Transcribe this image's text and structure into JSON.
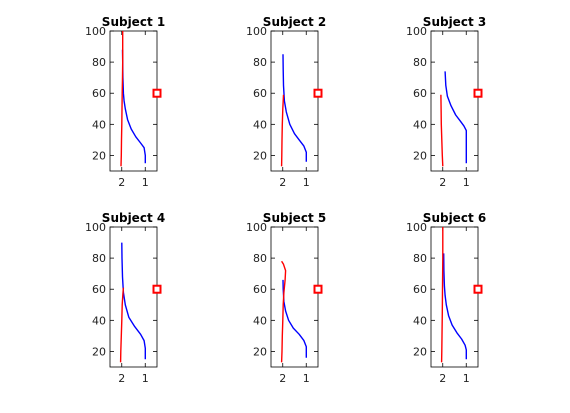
{
  "chart_data": [
    {
      "type": "line",
      "title": "Subject 1",
      "xlim": [
        2.5,
        0.5
      ],
      "ylim": [
        10,
        100
      ],
      "xticks": [
        2,
        1
      ],
      "yticks": [
        20,
        40,
        60,
        80,
        100
      ],
      "series": [
        {
          "color": "#0000ff",
          "x": [
            1,
            1,
            1.05,
            1.2,
            1.4,
            1.6,
            1.75,
            1.85,
            1.9,
            1.93,
            1.95,
            1.96,
            1.97
          ],
          "y": [
            15,
            20,
            25,
            28,
            32,
            37,
            43,
            50,
            55,
            60,
            70,
            80,
            88
          ]
        },
        {
          "color": "#ff0000",
          "x": [
            2.03,
            2.02,
            2.01,
            2.0,
            1.99,
            1.98,
            1.97,
            1.96,
            1.96
          ],
          "y": [
            13,
            20,
            30,
            40,
            50,
            60,
            70,
            80,
            100
          ]
        }
      ],
      "marker": {
        "color": "#ff0000",
        "x": 0.5,
        "y": 60
      }
    },
    {
      "type": "line",
      "title": "Subject 2",
      "xlim": [
        2.5,
        0.5
      ],
      "ylim": [
        10,
        100
      ],
      "xticks": [
        2,
        1
      ],
      "yticks": [
        20,
        40,
        60,
        80,
        100
      ],
      "series": [
        {
          "color": "#0000ff",
          "x": [
            1,
            1,
            1.1,
            1.3,
            1.5,
            1.7,
            1.85,
            1.93,
            1.97,
            1.98,
            1.99
          ],
          "y": [
            16,
            22,
            26,
            30,
            34,
            40,
            48,
            55,
            65,
            75,
            85
          ]
        },
        {
          "color": "#ff0000",
          "x": [
            2.05,
            2.04,
            2.03,
            2.02,
            2.0,
            1.98,
            1.97
          ],
          "y": [
            13,
            20,
            30,
            40,
            50,
            55,
            59
          ]
        }
      ],
      "marker": {
        "color": "#ff0000",
        "x": 0.5,
        "y": 60
      }
    },
    {
      "type": "line",
      "title": "Subject 3",
      "xlim": [
        2.5,
        0.5
      ],
      "ylim": [
        10,
        100
      ],
      "xticks": [
        2,
        1
      ],
      "yticks": [
        20,
        40,
        60,
        80,
        100
      ],
      "series": [
        {
          "color": "#0000ff",
          "x": [
            1,
            1,
            1,
            1.1,
            1.25,
            1.45,
            1.65,
            1.8,
            1.87,
            1.9
          ],
          "y": [
            15,
            22,
            36,
            39,
            42,
            46,
            52,
            58,
            65,
            74
          ]
        },
        {
          "color": "#ff0000",
          "x": [
            2.0,
            2.02,
            2.04,
            2.06,
            2.07,
            2.08
          ],
          "y": [
            13,
            20,
            30,
            40,
            50,
            59
          ]
        }
      ],
      "marker": {
        "color": "#ff0000",
        "x": 0.5,
        "y": 60
      }
    },
    {
      "type": "line",
      "title": "Subject 4",
      "xlim": [
        2.5,
        0.5
      ],
      "ylim": [
        10,
        100
      ],
      "xticks": [
        2,
        1
      ],
      "yticks": [
        20,
        40,
        60,
        80,
        100
      ],
      "series": [
        {
          "color": "#0000ff",
          "x": [
            1,
            1,
            1.05,
            1.2,
            1.45,
            1.7,
            1.85,
            1.93,
            1.97,
            1.99,
            2.0
          ],
          "y": [
            15,
            22,
            27,
            31,
            36,
            42,
            50,
            58,
            68,
            80,
            90
          ]
        },
        {
          "color": "#ff0000",
          "x": [
            2.05,
            2.04,
            2.02,
            2.0,
            1.98,
            1.95,
            1.93
          ],
          "y": [
            13,
            20,
            30,
            40,
            50,
            57,
            61
          ]
        }
      ],
      "marker": {
        "color": "#ff0000",
        "x": 0.5,
        "y": 60
      }
    },
    {
      "type": "line",
      "title": "Subject 5",
      "xlim": [
        2.5,
        0.5
      ],
      "ylim": [
        10,
        100
      ],
      "xticks": [
        2,
        1
      ],
      "yticks": [
        20,
        40,
        60,
        80,
        100
      ],
      "series": [
        {
          "color": "#0000ff",
          "x": [
            1,
            1,
            1.1,
            1.3,
            1.55,
            1.75,
            1.88,
            1.95,
            1.98,
            1.99
          ],
          "y": [
            16,
            23,
            27,
            31,
            35,
            40,
            46,
            52,
            60,
            66
          ]
        },
        {
          "color": "#ff0000",
          "x": [
            2.05,
            2.03,
            2.02,
            2.0,
            1.98,
            1.95,
            1.9,
            1.88,
            1.97,
            2.05
          ],
          "y": [
            13,
            20,
            30,
            40,
            50,
            58,
            66,
            72,
            76,
            78
          ]
        }
      ],
      "marker": {
        "color": "#ff0000",
        "x": 0.5,
        "y": 60
      }
    },
    {
      "type": "line",
      "title": "Subject 6",
      "xlim": [
        2.5,
        0.5
      ],
      "ylim": [
        10,
        100
      ],
      "xticks": [
        2,
        1
      ],
      "yticks": [
        20,
        40,
        60,
        80,
        100
      ],
      "series": [
        {
          "color": "#0000ff",
          "x": [
            1,
            1,
            1.05,
            1.2,
            1.4,
            1.6,
            1.75,
            1.85,
            1.9,
            1.93,
            1.95,
            1.96
          ],
          "y": [
            15,
            21,
            24,
            28,
            32,
            37,
            43,
            50,
            56,
            62,
            72,
            83
          ]
        },
        {
          "color": "#ff0000",
          "x": [
            2.05,
            2.04,
            2.03,
            2.02,
            2.01,
            2.0,
            2.0
          ],
          "y": [
            13,
            20,
            30,
            45,
            60,
            80,
            100
          ]
        }
      ],
      "marker": {
        "color": "#ff0000",
        "x": 0.5,
        "y": 60
      }
    }
  ]
}
